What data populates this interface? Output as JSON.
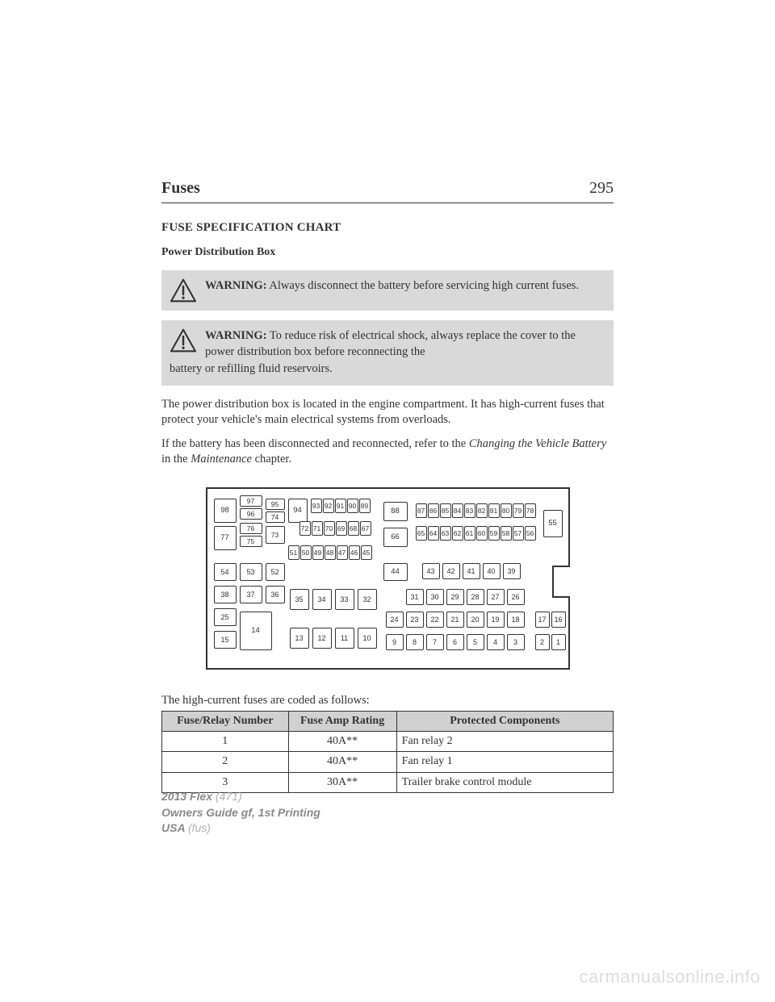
{
  "header": {
    "title": "Fuses",
    "page": "295"
  },
  "section_title": "FUSE SPECIFICATION CHART",
  "subsection_title": "Power Distribution Box",
  "warnings": [
    {
      "label": "WARNING:",
      "text": "Always disconnect the battery before servicing high current fuses."
    },
    {
      "label": "WARNING:",
      "text": "To reduce risk of electrical shock, always replace the cover to the power distribution box before reconnecting the",
      "extra": "battery or refilling fluid reservoirs."
    }
  ],
  "paragraphs": [
    "The power distribution box is located in the engine compartment. It has high-current fuses that protect your vehicle's main electrical systems from overloads.",
    "If the battery has been disconnected and reconnected, refer to the"
  ],
  "para2_italic_a": "Changing the Vehicle Battery",
  "para2_mid": " in the ",
  "para2_italic_b": "Maintenance",
  "para2_end": " chapter.",
  "diagram": {
    "outline_color": "#333333",
    "fill": "#ffffff",
    "fuses_top_row1": [
      "93",
      "92",
      "91",
      "90",
      "89"
    ],
    "fuses_top_row2": [
      "72",
      "71",
      "70",
      "69",
      "68",
      "67"
    ],
    "fuses_top_row3": [
      "51",
      "50",
      "49",
      "48",
      "47",
      "46",
      "45"
    ],
    "mid_big": [
      "88",
      "66",
      "44"
    ],
    "right_strip_top": [
      "87",
      "86",
      "85",
      "84",
      "83",
      "82",
      "81",
      "80",
      "79",
      "78"
    ],
    "right_strip_bot": [
      "65",
      "64",
      "63",
      "62",
      "61",
      "60",
      "59",
      "58",
      "57",
      "56"
    ],
    "right_big": "55",
    "row_43": [
      "43",
      "42",
      "41",
      "40",
      "39"
    ],
    "row_31": [
      "31",
      "30",
      "29",
      "28",
      "27",
      "26"
    ],
    "row_24": [
      "24",
      "23",
      "22",
      "21",
      "20",
      "19",
      "18"
    ],
    "row_9": [
      "9",
      "8",
      "7",
      "6",
      "5",
      "4",
      "3"
    ],
    "pair_17": [
      "17",
      "16"
    ],
    "pair_2": [
      "2",
      "1"
    ],
    "left_col": {
      "r1": [
        "98",
        "97",
        "95",
        "94"
      ],
      "r1b": [
        "96",
        "74"
      ],
      "r2": [
        "77",
        "76",
        "73"
      ],
      "r2b": [
        "75"
      ],
      "r3": [
        "54",
        "53",
        "52"
      ],
      "r4": [
        "38",
        "37",
        "36"
      ],
      "r5": [
        "25"
      ],
      "r6": [
        "15",
        "14"
      ],
      "mid4": [
        "35",
        "34",
        "33",
        "32"
      ],
      "bot4": [
        "13",
        "12",
        "11",
        "10"
      ]
    }
  },
  "table_caption": "The high-current fuses are coded as follows:",
  "table": {
    "columns": [
      "Fuse/Relay Number",
      "Fuse Amp Rating",
      "Protected Components"
    ],
    "rows": [
      [
        "1",
        "40A**",
        "Fan relay 2"
      ],
      [
        "2",
        "40A**",
        "Fan relay 1"
      ],
      [
        "3",
        "30A**",
        "Trailer brake control module"
      ]
    ],
    "header_bg": "#d1d1d1"
  },
  "footer": {
    "model": "2013 Flex",
    "model_code": "(471)",
    "line2a": "Owners Guide gf, 1st Printing",
    "line3a": "USA",
    "line3b": "(fus)"
  },
  "watermark": "carmanualsonline.info"
}
